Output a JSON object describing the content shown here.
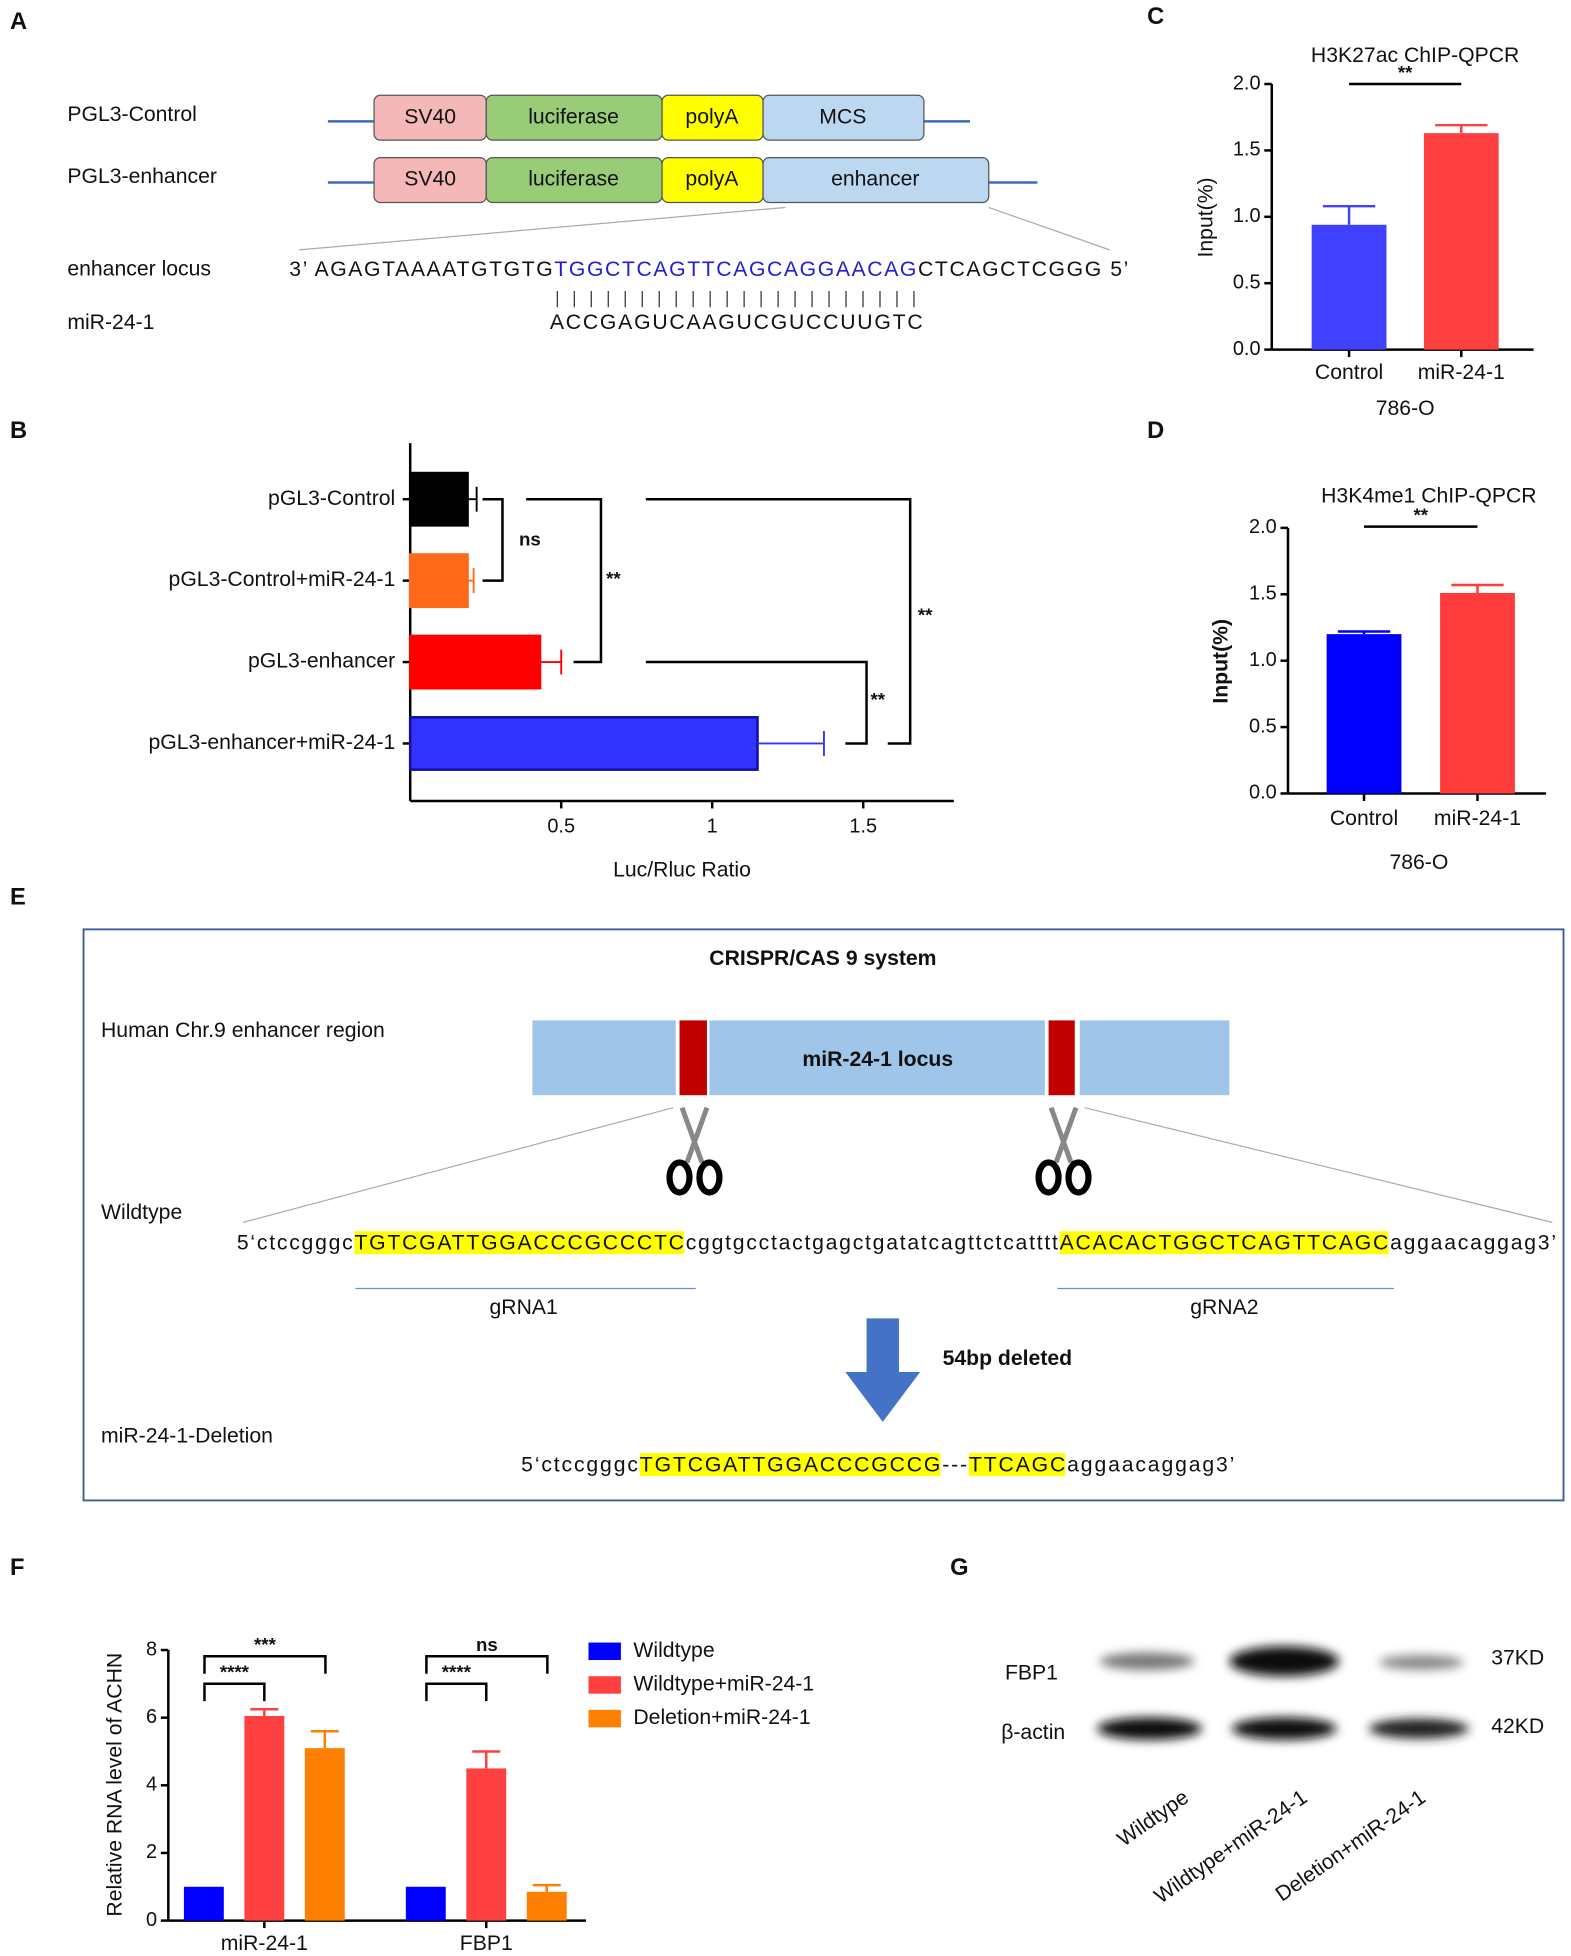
{
  "panel_labels": [
    "A",
    "B",
    "C",
    "D",
    "E",
    "F",
    "G"
  ],
  "construct_diagram": {
    "rows": [
      {
        "name": "PGL3-Control",
        "parts": [
          "SV40",
          "luciferase",
          "polyA",
          "MCS"
        ]
      },
      {
        "name": "PGL3-enhancer",
        "parts": [
          "SV40",
          "luciferase",
          "polyA",
          "enhancer"
        ]
      }
    ],
    "locus_label": "enhancer locus",
    "locus_sequence": [
      "3’ AGAGTAAAATGTGTG",
      "TGGCTCAGTTCAGCAGGAACAG",
      "CTCAGCTCGGG 5’"
    ],
    "mirna_label": "miR-24-1",
    "mirna_sequence": "ACCGAGUCAAGUCGUCCUUGTC"
  },
  "chart_data": [
    {
      "type": "bar",
      "orientation": "horizontal",
      "categories": [
        "pGL3-Control",
        "pGL3-Control+miR-24-1",
        "pGL3-enhancer",
        "pGL3-enhancer+miR-24-1"
      ],
      "values": [
        0.19,
        0.19,
        0.43,
        1.15
      ],
      "errors": [
        0.03,
        0.02,
        0.07,
        0.22
      ],
      "colors": [
        "#000000",
        "#ff6a1a",
        "#ff0000",
        "#3333ff"
      ],
      "xlabel": "Luc/Rluc Ratio",
      "xlim": [
        0,
        1.8
      ],
      "xticks": [
        0.5,
        1,
        1.5
      ],
      "annotations": [
        "ns",
        "**",
        "**",
        "**"
      ]
    },
    {
      "type": "bar",
      "title": "H3K27ac ChIP-QPCR",
      "categories": [
        "Control",
        "miR-24-1"
      ],
      "values": [
        0.94,
        1.63
      ],
      "errors": [
        0.14,
        0.06
      ],
      "colors": [
        "#4040ff",
        "#ff4040"
      ],
      "ylabel": "Input(%)",
      "xlabel": "786-O",
      "ylim": [
        0,
        2
      ],
      "yticks": [
        {
          "value": 0,
          "label": "0.0"
        },
        0.5,
        {
          "value": 1,
          "label": "1.0"
        },
        1.5,
        {
          "value": 2,
          "label": "2.0"
        }
      ],
      "annotations": [
        "**"
      ]
    },
    {
      "type": "bar",
      "title": "H3K4me1 ChIP-QPCR",
      "categories": [
        "Control",
        "miR-24-1"
      ],
      "values": [
        1.2,
        1.51
      ],
      "errors": [
        0.02,
        0.06
      ],
      "colors": [
        "#0000ff",
        "#ff3b3b"
      ],
      "ylabel": "Input(%)",
      "xlabel": "786-O",
      "ylim": [
        0,
        2
      ],
      "yticks": [
        {
          "value": 0,
          "label": "0.0"
        },
        0.5,
        {
          "value": 1,
          "label": "1.0"
        },
        1.5,
        {
          "value": 2,
          "label": "2.0"
        }
      ],
      "annotations": [
        "**"
      ]
    },
    {
      "type": "grouped_bar",
      "categories": [
        "miR-24-1",
        "FBP1"
      ],
      "series": [
        {
          "name": "Wildtype",
          "color": "#0000ff",
          "values": [
            1,
            1
          ]
        },
        {
          "name": "Wildtype+miR-24-1",
          "color": "#ff4040",
          "values": [
            6.05,
            4.5
          ],
          "errors": [
            0.2,
            0.5
          ]
        },
        {
          "name": "Deletion+miR-24-1",
          "color": "#ff8000",
          "values": [
            5.1,
            0.85
          ],
          "errors": [
            0.5,
            0.2
          ]
        }
      ],
      "ylabel": "Relative RNA level of ACHN",
      "ylim": [
        0,
        8
      ],
      "yticks": [
        0,
        2,
        4,
        6,
        8
      ],
      "annotations": [
        "****",
        "***",
        "****",
        "ns"
      ],
      "legend": "right"
    }
  ],
  "crispr_diagram": {
    "title": "CRISPR/CAS 9 system",
    "region_label": "Human Chr.9 enhancer region",
    "locus_label": "miR-24-1 locus",
    "wildtype_label": "Wildtype",
    "wildtype_sequence": [
      "5‘ctccgggc",
      "TGTCGATTGGACCCGCCCTC",
      "cggtgcctactgagctgatatcagttctcatttt",
      "ACACACTGGCTCAGTTCAGC",
      "aggaacaggag3’"
    ],
    "grna_labels": [
      "gRNA1",
      "gRNA2"
    ],
    "deletion_note": "54bp deleted",
    "deletion_label": "miR-24-1-Deletion",
    "deletion_sequence": [
      "5‘ctccgggc",
      "TGTCGATTGGACCCGCCG",
      "---",
      "TTCAGC",
      "aggaacaggag3’"
    ]
  },
  "western_blot": {
    "proteins": [
      "FBP1",
      "β-actin"
    ],
    "sizes": [
      "37KD",
      "42KD"
    ],
    "lanes": [
      "Wildtype",
      "Wildtype+miR-24-1",
      "Deletion+miR-24-1"
    ]
  }
}
